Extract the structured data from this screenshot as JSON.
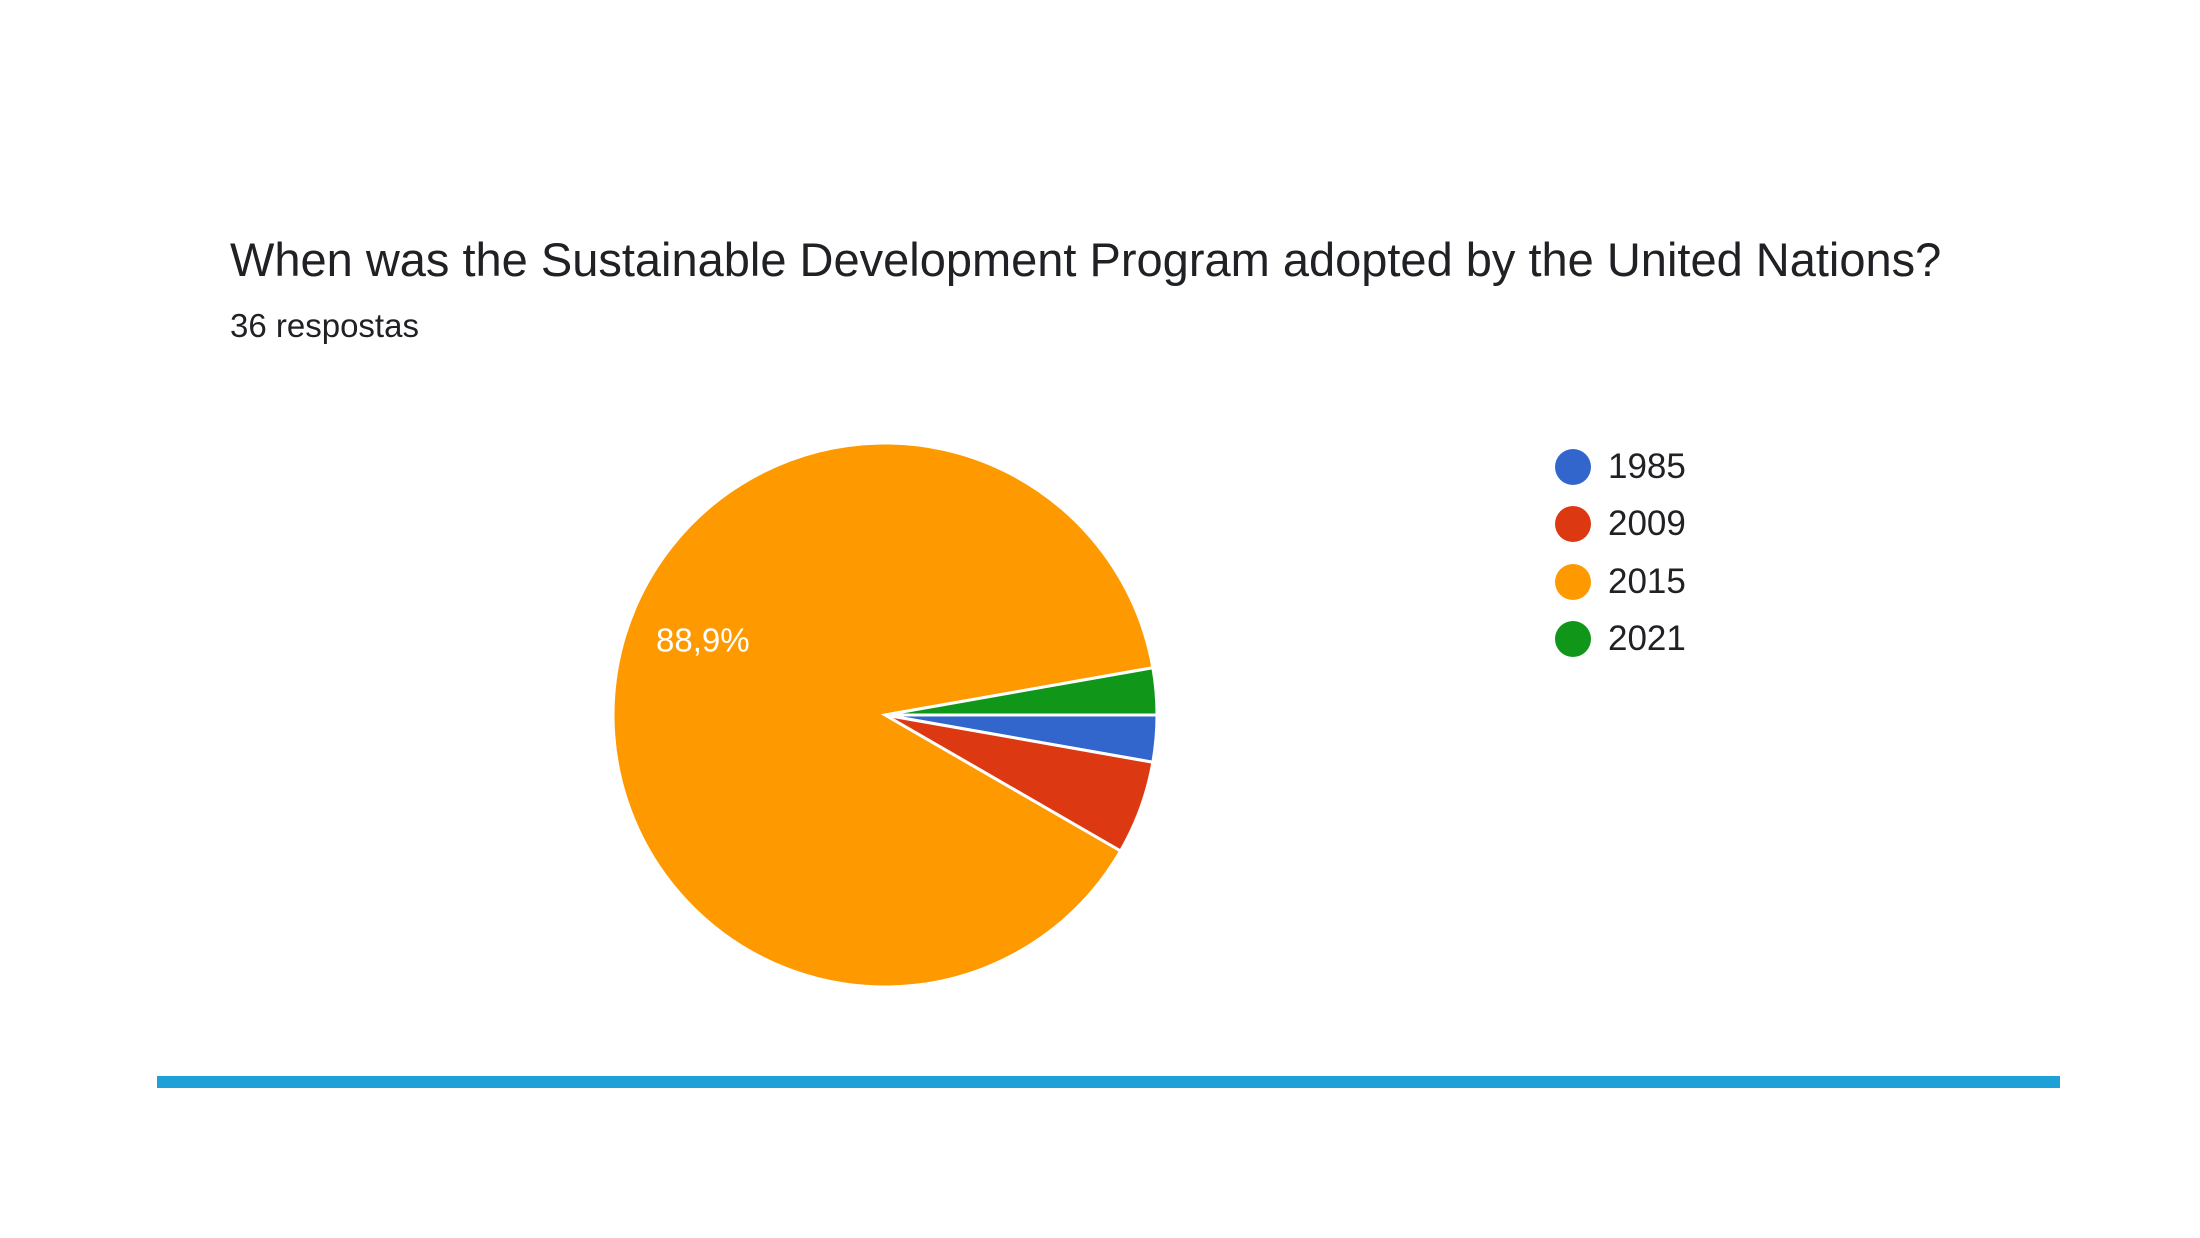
{
  "question": {
    "title": "When was the Sustainable Development Program adopted by the United Nations?",
    "responses": "36 respostas"
  },
  "divider_color": "#1fa1d7",
  "chart_data": {
    "type": "pie",
    "categories": [
      "1985",
      "2009",
      "2015",
      "2021"
    ],
    "values": [
      1,
      2,
      32,
      1
    ],
    "colors": [
      "#3366cc",
      "#dc3912",
      "#ff9900",
      "#109618"
    ],
    "data_labels": [
      "",
      "",
      "88,9%",
      ""
    ],
    "legend_position": "right"
  }
}
